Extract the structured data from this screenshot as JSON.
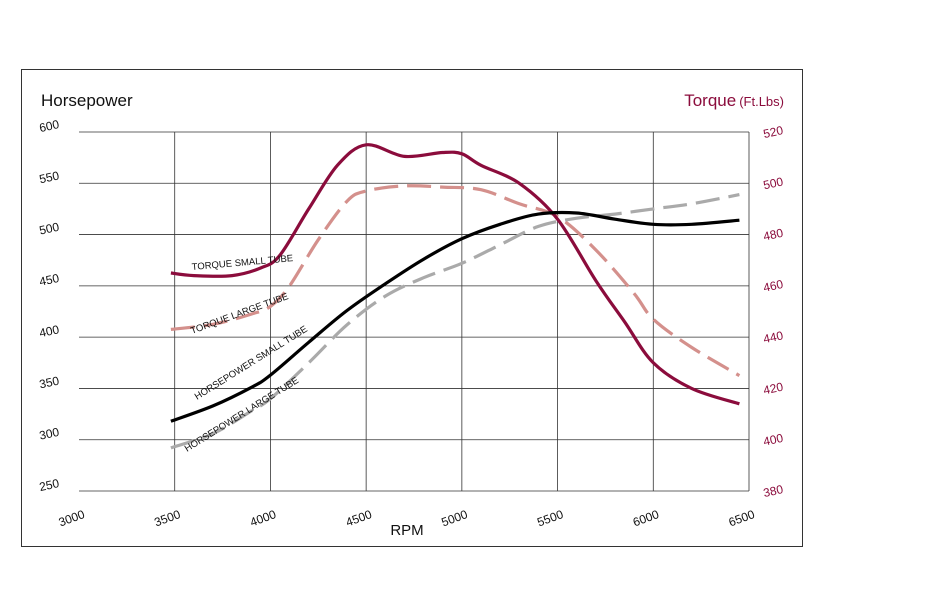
{
  "chart_data": {
    "type": "line",
    "xlabel": "RPM",
    "y_left_label": "Horsepower",
    "y_right_label": "Torque",
    "y_right_unit": "(Ft.Lbs)",
    "xlim": [
      3000,
      6500
    ],
    "ylim_left": [
      250,
      600
    ],
    "ylim_right": [
      380,
      520
    ],
    "x_ticks": [
      3000,
      3500,
      4000,
      4500,
      5000,
      5500,
      6000,
      6500
    ],
    "y_left_ticks": [
      250,
      300,
      350,
      400,
      450,
      500,
      550,
      600
    ],
    "y_right_ticks": [
      380,
      400,
      420,
      440,
      460,
      480,
      500,
      520
    ],
    "grid": true,
    "colors": {
      "torque_small": "#8b0c3c",
      "torque_large": "#d4908c",
      "hp_small": "#000000",
      "hp_large": "#aaaaaa",
      "right_axis": "#8b0c3c"
    },
    "series": [
      {
        "name": "TORQUE SMALL TUBE",
        "axis": "right",
        "style": "solid",
        "x": [
          3480,
          3600,
          3800,
          3950,
          4050,
          4200,
          4350,
          4500,
          4700,
          4900,
          5000,
          5100,
          5300,
          5500,
          5700,
          5850,
          6000,
          6200,
          6450
        ],
        "y": [
          465,
          464,
          464,
          467,
          472,
          490,
          507,
          515,
          510.5,
          512,
          511.5,
          507,
          500,
          486,
          462,
          446,
          430,
          420,
          414
        ]
      },
      {
        "name": "TORQUE LARGE TUBE",
        "axis": "right",
        "style": "dashed",
        "x": [
          3480,
          3700,
          3900,
          4000,
          4100,
          4250,
          4400,
          4500,
          4700,
          4900,
          5100,
          5300,
          5500,
          5700,
          5900,
          6000,
          6200,
          6450
        ],
        "y": [
          443,
          445,
          449,
          452,
          460,
          478,
          493,
          497,
          499,
          498.5,
          497.5,
          492,
          487,
          474,
          457,
          447,
          436,
          425
        ]
      },
      {
        "name": "HORSEPOWER SMALL TUBE",
        "axis": "left",
        "style": "solid",
        "x": [
          3480,
          3700,
          3900,
          4000,
          4200,
          4400,
          4600,
          4800,
          5000,
          5200,
          5400,
          5600,
          5800,
          6000,
          6200,
          6450
        ],
        "y": [
          318,
          333,
          351,
          363,
          395,
          426,
          452,
          476,
          496,
          510,
          520,
          521,
          515,
          510,
          510,
          514
        ]
      },
      {
        "name": "HORSEPOWER LARGE TUBE",
        "axis": "left",
        "style": "dashed",
        "x": [
          3480,
          3700,
          3900,
          4000,
          4200,
          4400,
          4600,
          4800,
          5000,
          5200,
          5400,
          5600,
          5800,
          6000,
          6200,
          6450
        ],
        "y": [
          292,
          306,
          328,
          340,
          375,
          412,
          440,
          458,
          472,
          490,
          508,
          516,
          520,
          525,
          530,
          539
        ]
      }
    ]
  }
}
